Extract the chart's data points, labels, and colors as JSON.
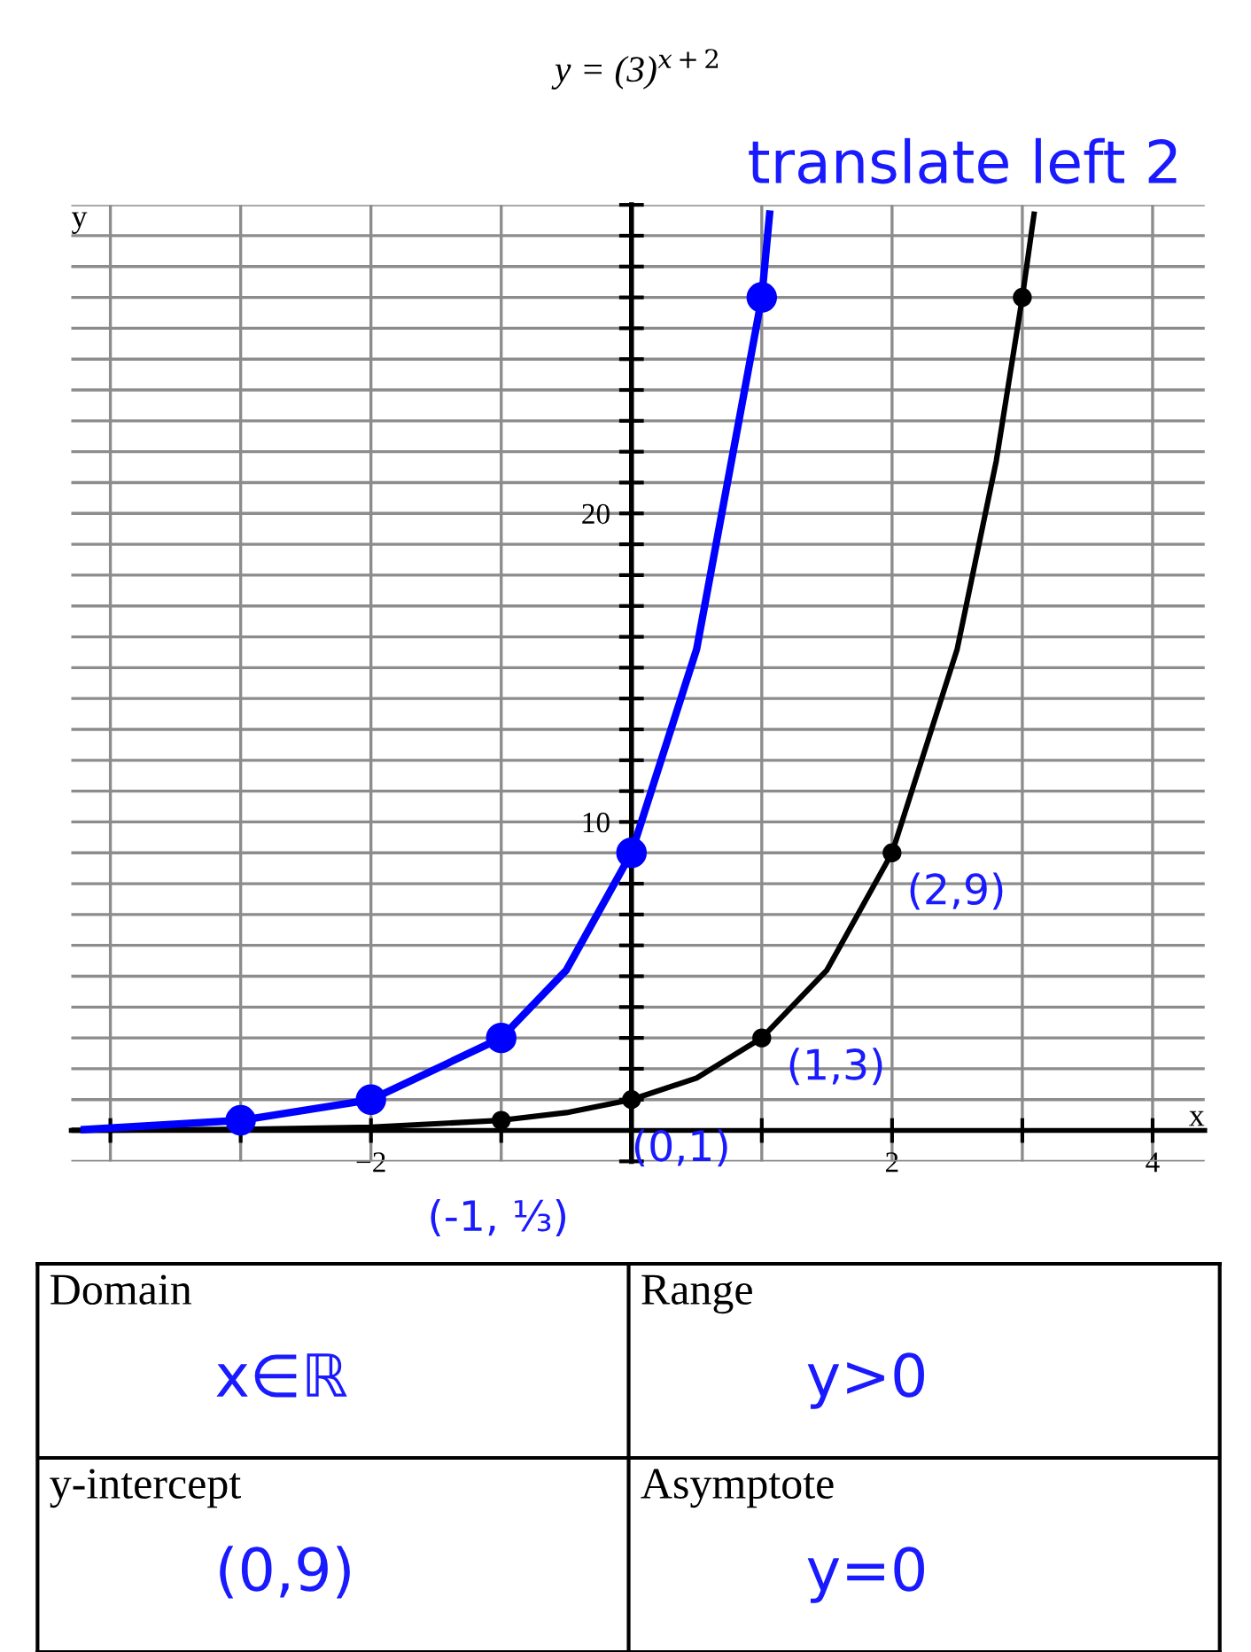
{
  "chart_data": [
    {
      "type": "line",
      "title": "y = (3)$^{x+2}$",
      "xlabel": "x",
      "ylabel": "y",
      "xlim": [
        -4.3,
        4.4
      ],
      "ylim": [
        -1,
        30
      ],
      "xticks": [
        {
          "value": -4,
          "label": null
        },
        {
          "value": -3,
          "label": null
        },
        {
          "value": -2,
          "label": "−2"
        },
        {
          "value": -1,
          "label": null
        },
        {
          "value": 0,
          "label": null
        },
        {
          "value": 1,
          "label": null
        },
        2,
        {
          "value": 3,
          "label": null
        },
        4
      ],
      "yticks": [
        {
          "value": -1,
          "label": null
        },
        {
          "value": 0,
          "label": null
        },
        {
          "value": 1,
          "label": null
        },
        {
          "value": 2,
          "label": null
        },
        {
          "value": 3,
          "label": null
        },
        {
          "value": 4,
          "label": null
        },
        {
          "value": 5,
          "label": null
        },
        {
          "value": 6,
          "label": null
        },
        {
          "value": 7,
          "label": null
        },
        {
          "value": 8,
          "label": null
        },
        {
          "value": 9,
          "label": null
        },
        10,
        {
          "value": 11,
          "label": null
        },
        {
          "value": 12,
          "label": null
        },
        {
          "value": 13,
          "label": null
        },
        {
          "value": 14,
          "label": null
        },
        {
          "value": 15,
          "label": null
        },
        {
          "value": 16,
          "label": null
        },
        {
          "value": 17,
          "label": null
        },
        {
          "value": 18,
          "label": null
        },
        {
          "value": 19,
          "label": null
        },
        20,
        {
          "value": 21,
          "label": null
        },
        {
          "value": 22,
          "label": null
        },
        {
          "value": 23,
          "label": null
        },
        {
          "value": 24,
          "label": null
        },
        {
          "value": 25,
          "label": null
        },
        {
          "value": 26,
          "label": null
        },
        {
          "value": 27,
          "label": null
        },
        {
          "value": 28,
          "label": null
        },
        {
          "value": 29,
          "label": null
        },
        {
          "value": 30,
          "label": null
        }
      ],
      "grid": true,
      "series": [
        {
          "type": "line",
          "color": "#000000",
          "x": [
            -4.3,
            -4,
            -3,
            -2,
            -1,
            -0.5,
            0,
            0.5,
            1,
            1.5,
            2,
            2.5,
            2.8,
            3,
            3.09
          ],
          "values": [
            0.01,
            0.01,
            0.04,
            0.11,
            0.33,
            0.58,
            1,
            1.7,
            3,
            5.2,
            9,
            15.6,
            21.7,
            27,
            29.7
          ]
        },
        {
          "type": "line",
          "color": "#0000ff",
          "x": [
            -4.2,
            -3,
            -2,
            -1,
            -0.5,
            0,
            0.5,
            1,
            1.06
          ],
          "values": [
            0.03,
            0.33,
            1,
            3,
            5.2,
            9,
            15.6,
            27,
            29.7
          ]
        },
        {
          "type": "scatter",
          "color": "#000000",
          "marker": "circle",
          "x": [
            -1,
            0,
            1,
            2,
            3
          ],
          "values": [
            0.33,
            1,
            3,
            9,
            27
          ]
        },
        {
          "type": "scatter",
          "color": "#0000ff",
          "marker": "circle",
          "x": [
            -3,
            -2,
            -1,
            0,
            1
          ],
          "values": [
            0.33,
            1,
            3,
            9,
            27
          ]
        }
      ],
      "annotations": [
        "translate left 2",
        {
          "text": "(2,9)",
          "x": 2,
          "y": 9
        },
        {
          "text": "(1,3)",
          "x": 1,
          "y": 3
        },
        {
          "text": "(0,1)",
          "x": 0,
          "y": 1
        },
        {
          "text": "(-1, ⅓)",
          "x": -1,
          "y": 0.33
        }
      ]
    },
    {
      "type": "other",
      "annotations": [
        "Domain",
        "x∈ℝ",
        "Range",
        "y>0",
        "y-intercept",
        "(0,9)",
        "Asymptote",
        "y=0"
      ]
    }
  ]
}
